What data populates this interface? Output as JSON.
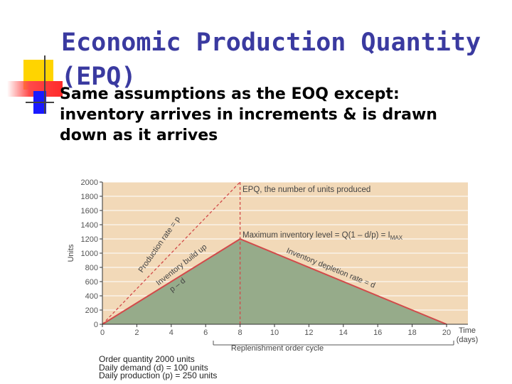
{
  "slide": {
    "title": "Economic Production Quantity (EPQ)",
    "body_lines": [
      "Same assumptions as the EOQ except:",
      "inventory arrives in increments & is drawn",
      "down as it arrives"
    ]
  },
  "chart_data": {
    "type": "area",
    "x": [
      0,
      8,
      20
    ],
    "y": [
      0,
      1200,
      0
    ],
    "xlabel": "Time (days)",
    "xlabel_lines": [
      "Time",
      "(days)"
    ],
    "ylabel": "Units",
    "xlim": [
      0,
      20
    ],
    "ylim": [
      0,
      2000
    ],
    "x_ticks": [
      0,
      2,
      4,
      6,
      8,
      10,
      12,
      14,
      16,
      18,
      20
    ],
    "y_ticks": [
      0,
      200,
      400,
      600,
      800,
      1000,
      1200,
      1400,
      1600,
      1800,
      2000
    ],
    "production_line": {
      "x": [
        0,
        8
      ],
      "y": [
        0,
        2000
      ]
    },
    "annotations": {
      "epq": "EPQ, the number of units produced",
      "max_inventory": "Maximum inventory level = Q(1 – d/p) = I",
      "max_inventory_sub": "MAX",
      "production_rate": "Production rate = p",
      "inventory_buildup": "Inventory build up",
      "buildup_rate": "p – d",
      "depletion": "Inventory depletion rate = d",
      "cycle": "Replenishment order cycle"
    },
    "notes": [
      "Order quantity 2000 units",
      "Daily demand (d) = 100 units",
      "Daily production (p) = 250 units"
    ],
    "colors": {
      "background": "#f2d9b8",
      "area": "#96ab8a",
      "line": "#d24a4a",
      "tick_text": "#555555"
    }
  }
}
